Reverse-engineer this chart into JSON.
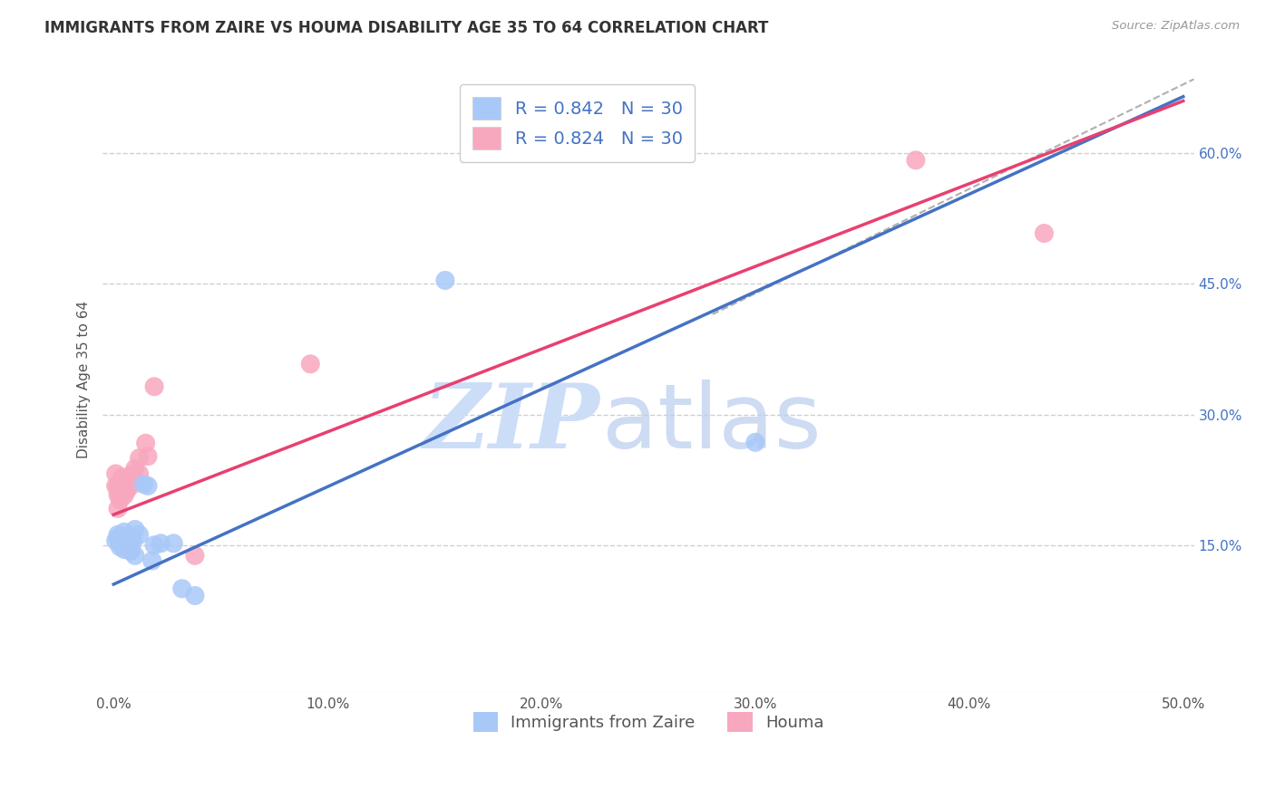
{
  "title": "IMMIGRANTS FROM ZAIRE VS HOUMA DISABILITY AGE 35 TO 64 CORRELATION CHART",
  "source_text": "Source: ZipAtlas.com",
  "ylabel": "Disability Age 35 to 64",
  "xlim": [
    -0.005,
    0.505
  ],
  "ylim": [
    -0.02,
    0.7
  ],
  "xticks": [
    0.0,
    0.1,
    0.2,
    0.3,
    0.4,
    0.5
  ],
  "xticklabels": [
    "0.0%",
    "10.0%",
    "20.0%",
    "30.0%",
    "40.0%",
    "50.0%"
  ],
  "yticks": [
    0.15,
    0.3,
    0.45,
    0.6
  ],
  "yticklabels": [
    "15.0%",
    "30.0%",
    "45.0%",
    "60.0%"
  ],
  "blue_scatter": [
    [
      0.001,
      0.155
    ],
    [
      0.002,
      0.158
    ],
    [
      0.002,
      0.162
    ],
    [
      0.003,
      0.155
    ],
    [
      0.003,
      0.16
    ],
    [
      0.003,
      0.148
    ],
    [
      0.004,
      0.155
    ],
    [
      0.004,
      0.15
    ],
    [
      0.005,
      0.16
    ],
    [
      0.005,
      0.145
    ],
    [
      0.005,
      0.165
    ],
    [
      0.006,
      0.152
    ],
    [
      0.006,
      0.157
    ],
    [
      0.007,
      0.16
    ],
    [
      0.008,
      0.157
    ],
    [
      0.008,
      0.143
    ],
    [
      0.009,
      0.153
    ],
    [
      0.01,
      0.168
    ],
    [
      0.01,
      0.138
    ],
    [
      0.012,
      0.162
    ],
    [
      0.014,
      0.22
    ],
    [
      0.016,
      0.218
    ],
    [
      0.018,
      0.132
    ],
    [
      0.019,
      0.15
    ],
    [
      0.022,
      0.152
    ],
    [
      0.028,
      0.152
    ],
    [
      0.032,
      0.1
    ],
    [
      0.038,
      0.092
    ],
    [
      0.155,
      0.454
    ],
    [
      0.3,
      0.268
    ]
  ],
  "pink_scatter": [
    [
      0.001,
      0.218
    ],
    [
      0.001,
      0.232
    ],
    [
      0.002,
      0.192
    ],
    [
      0.002,
      0.208
    ],
    [
      0.002,
      0.218
    ],
    [
      0.003,
      0.202
    ],
    [
      0.003,
      0.212
    ],
    [
      0.003,
      0.207
    ],
    [
      0.004,
      0.222
    ],
    [
      0.004,
      0.212
    ],
    [
      0.004,
      0.228
    ],
    [
      0.005,
      0.218
    ],
    [
      0.005,
      0.207
    ],
    [
      0.006,
      0.222
    ],
    [
      0.006,
      0.212
    ],
    [
      0.007,
      0.228
    ],
    [
      0.008,
      0.222
    ],
    [
      0.008,
      0.218
    ],
    [
      0.008,
      0.143
    ],
    [
      0.009,
      0.232
    ],
    [
      0.01,
      0.238
    ],
    [
      0.012,
      0.25
    ],
    [
      0.012,
      0.232
    ],
    [
      0.015,
      0.267
    ],
    [
      0.016,
      0.252
    ],
    [
      0.019,
      0.332
    ],
    [
      0.038,
      0.138
    ],
    [
      0.092,
      0.358
    ],
    [
      0.375,
      0.592
    ],
    [
      0.435,
      0.508
    ]
  ],
  "blue_line": {
    "x0": 0.0,
    "y0": 0.105,
    "x1": 0.5,
    "y1": 0.665
  },
  "pink_line": {
    "x0": 0.0,
    "y0": 0.185,
    "x1": 0.5,
    "y1": 0.66
  },
  "diag_line": {
    "x0": 0.28,
    "x1": 0.505,
    "y0": 0.415,
    "y1": 0.685
  },
  "blue_line_color": "#4472c4",
  "pink_line_color": "#e84070",
  "diag_line_color": "#b0b0b0",
  "scatter_blue_color": "#a8c8f8",
  "scatter_pink_color": "#f8a8be",
  "watermark_zip_color": "#ccddf8",
  "watermark_atlas_color": "#b8ccee",
  "background_color": "#ffffff",
  "grid_color": "#d0d0d0",
  "legend_items_top": [
    {
      "label": "R = 0.842   N = 30",
      "color": "#a8c8f8"
    },
    {
      "label": "R = 0.824   N = 30",
      "color": "#f8a8be"
    }
  ],
  "legend_items_bottom": [
    {
      "label": "Immigrants from Zaire",
      "color": "#a8c8f8"
    },
    {
      "label": "Houma",
      "color": "#f8a8be"
    }
  ]
}
